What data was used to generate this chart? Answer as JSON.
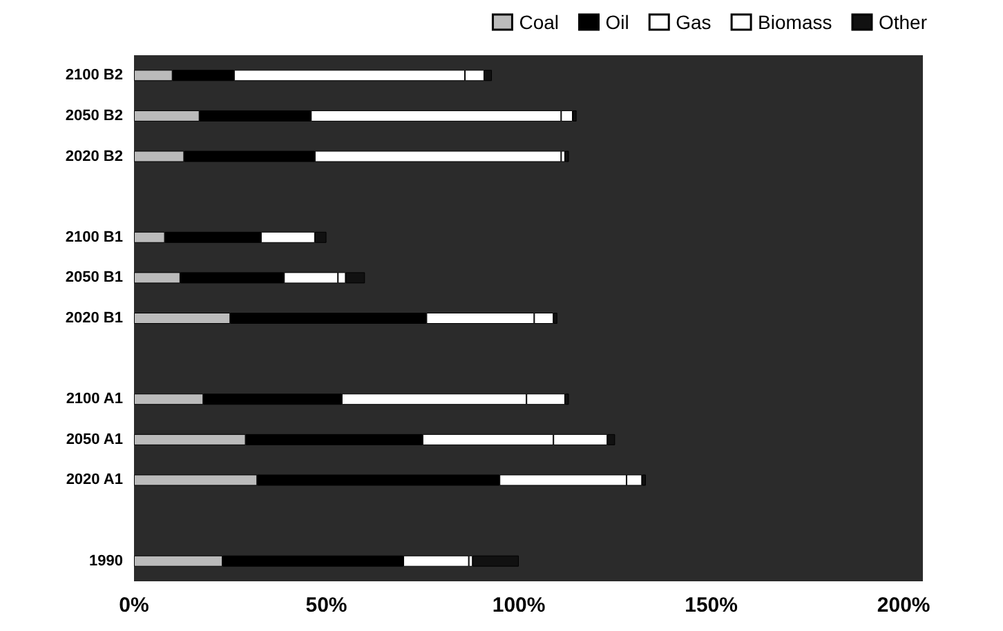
{
  "chart_data": {
    "type": "bar",
    "orientation": "horizontal",
    "stacked": true,
    "categories": [
      "2100 B2",
      "2050 B2",
      "2020 B2",
      null,
      "2100 B1",
      "2050 B1",
      "2020 B1",
      null,
      "2100 A1",
      "2050 A1",
      "2020 A1",
      null,
      "1990"
    ],
    "series": [
      {
        "name": "Coal",
        "color": "#bbbbbb",
        "values": [
          10,
          17,
          13,
          null,
          8,
          12,
          25,
          null,
          18,
          29,
          32,
          null,
          23
        ]
      },
      {
        "name": "Oil",
        "color": "#000000",
        "values": [
          16,
          29,
          34,
          null,
          25,
          27,
          51,
          null,
          36,
          46,
          63,
          null,
          47
        ]
      },
      {
        "name": "Gas",
        "color": "#ffffff",
        "values": [
          60,
          65,
          64,
          null,
          14,
          14,
          28,
          null,
          48,
          34,
          33,
          null,
          17
        ]
      },
      {
        "name": "Biomass",
        "color": "#ffffff",
        "values": [
          5,
          3,
          1,
          null,
          null,
          2,
          5,
          null,
          10,
          14,
          4,
          null,
          1
        ]
      },
      {
        "name": "Other",
        "color": "#111111",
        "values": [
          2,
          1,
          1,
          null,
          3,
          5,
          1,
          null,
          1,
          2,
          1,
          null,
          12
        ]
      }
    ],
    "xlim": [
      0,
      205
    ],
    "xticks": [
      {
        "value": 0,
        "label": "0%"
      },
      {
        "value": 50,
        "label": "50%"
      },
      {
        "value": 100,
        "label": "100%"
      },
      {
        "value": 150,
        "label": "150%"
      },
      {
        "value": 200,
        "label": "200%"
      }
    ],
    "legend": "top",
    "grid": false
  }
}
